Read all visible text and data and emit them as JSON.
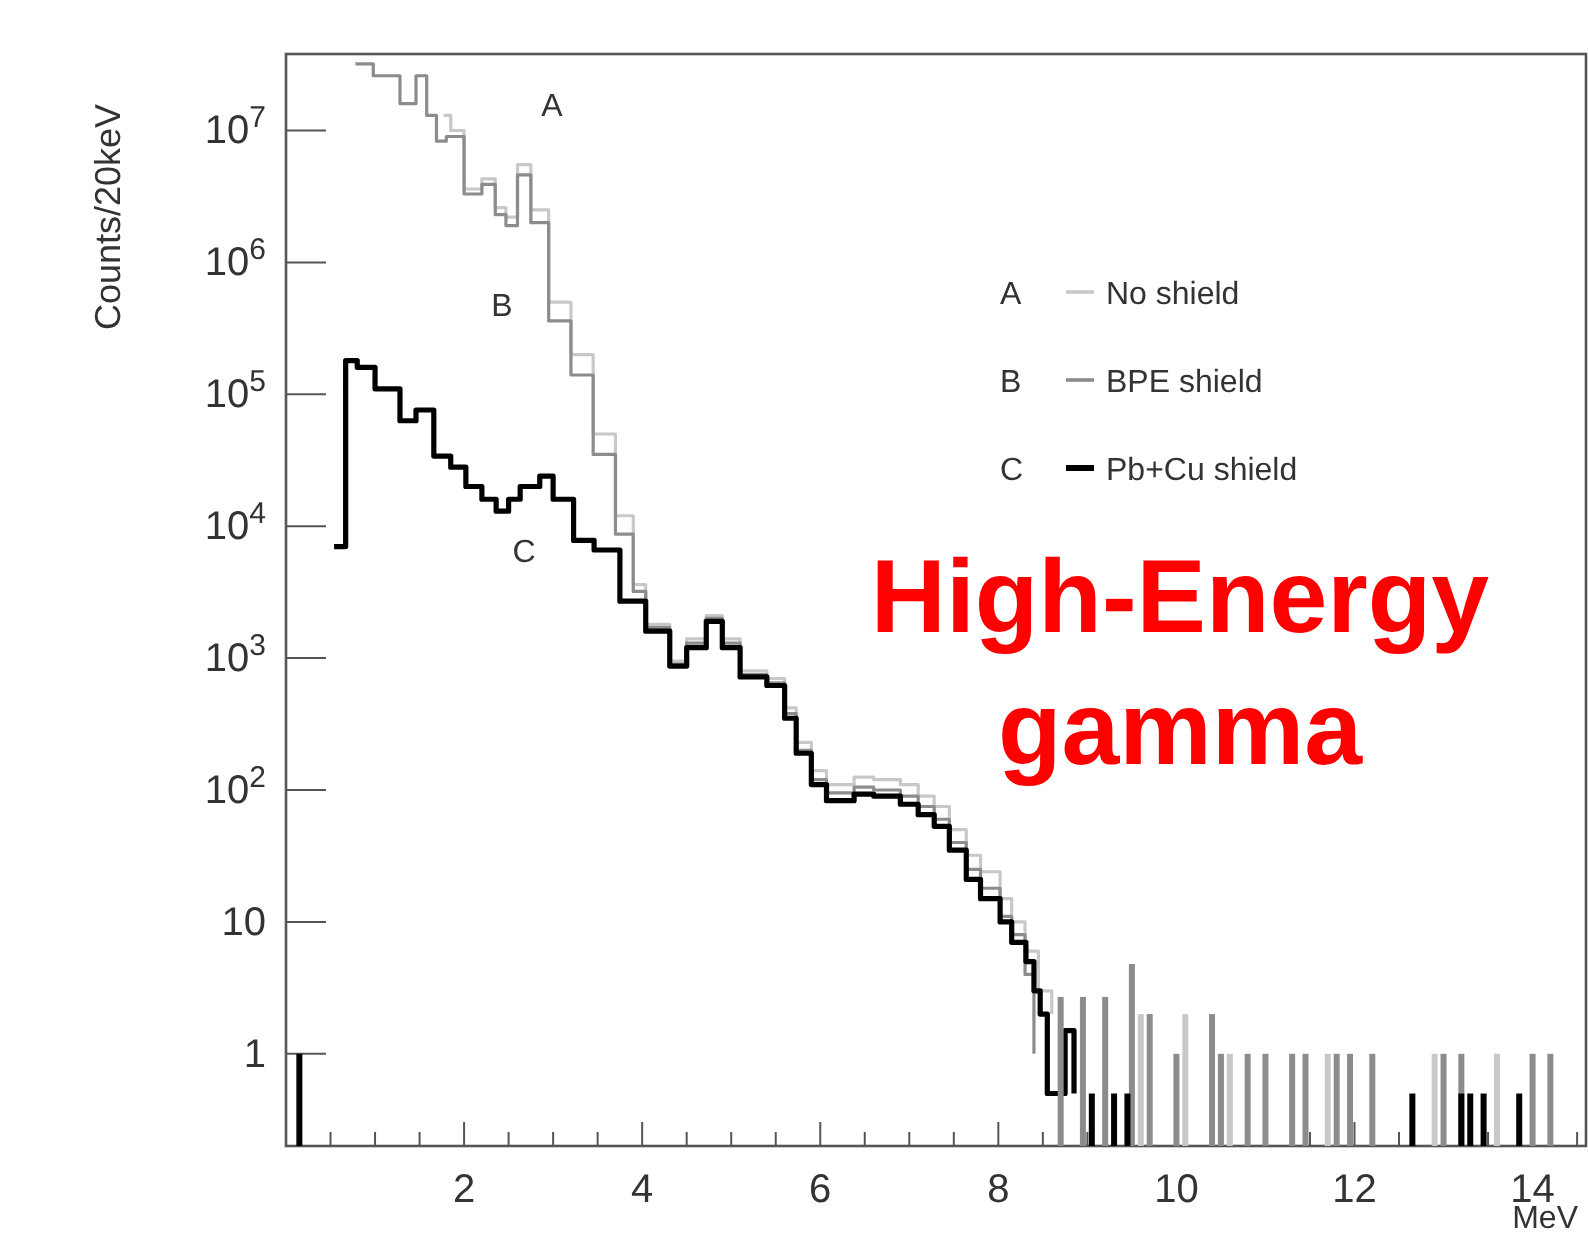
{
  "chart_data": {
    "type": "step",
    "xlabel": "MeV",
    "ylabel": "Counts/20keV",
    "log": "y",
    "grid": false,
    "legend": "top right",
    "line_style": "solid",
    "xlim": [
      0,
      14.6
    ],
    "ylim": [
      0.2,
      38000000
    ],
    "xticks": [
      {
        "value": 0.5,
        "label": null
      },
      {
        "value": 1,
        "label": null
      },
      {
        "value": 1.5,
        "label": null
      },
      2,
      {
        "value": 2.5,
        "label": null
      },
      {
        "value": 3,
        "label": null
      },
      {
        "value": 3.5,
        "label": null
      },
      4,
      {
        "value": 4.5,
        "label": null
      },
      {
        "value": 5,
        "label": null
      },
      {
        "value": 5.5,
        "label": null
      },
      6,
      {
        "value": 6.5,
        "label": null
      },
      {
        "value": 7,
        "label": null
      },
      {
        "value": 7.5,
        "label": null
      },
      8,
      {
        "value": 8.5,
        "label": null
      },
      {
        "value": 9,
        "label": null
      },
      {
        "value": 9.5,
        "label": null
      },
      10,
      {
        "value": 10.5,
        "label": null
      },
      {
        "value": 11,
        "label": null
      },
      {
        "value": 11.5,
        "label": null
      },
      12,
      {
        "value": 12.5,
        "label": null
      },
      {
        "value": 13,
        "label": null
      },
      {
        "value": 13.5,
        "label": null
      },
      14,
      {
        "value": 14.5,
        "label": null
      }
    ],
    "yticks": [
      1,
      10,
      {
        "value": 100,
        "label": "10$^{2}$"
      },
      {
        "value": 1000,
        "label": "10$^{3}$"
      },
      {
        "value": 10000,
        "label": "10$^{4}$"
      },
      {
        "value": 100000,
        "label": "10$^{5}$"
      },
      {
        "value": 1000000,
        "label": "10$^{6}$"
      },
      {
        "value": 10000000,
        "label": "10$^{7}$"
      }
    ],
    "series": [
      {
        "name": "No shield",
        "color": "#c8c8c8",
        "x": [
          1.77,
          1.85,
          2.0,
          2.2,
          2.35,
          2.47,
          2.6,
          2.75,
          2.95,
          3.2,
          3.45,
          3.7,
          3.9,
          4.04,
          4.31,
          4.5,
          4.72,
          4.9,
          5.1,
          5.4,
          5.6,
          5.73,
          5.9,
          6.07,
          6.38,
          6.6,
          6.9,
          7.1,
          7.28,
          7.45,
          7.64,
          7.8,
          8.02,
          8.15,
          8.3,
          8.45,
          8.6
        ],
        "values": [
          13000000,
          10000000,
          3600000,
          4300000,
          2600000,
          2200000,
          5500000,
          2500000,
          500000,
          200000,
          50000,
          12000,
          3600,
          1800,
          950,
          1400,
          2100,
          1400,
          800,
          700,
          420,
          230,
          140,
          110,
          125,
          120,
          110,
          90,
          75,
          50,
          32,
          24,
          15,
          10,
          6,
          3,
          2
        ]
      },
      {
        "name": "BPE shield",
        "color": "#8c8c8c",
        "x": [
          0.78,
          0.98,
          1.28,
          1.46,
          1.58,
          1.69,
          1.8,
          2.0,
          2.2,
          2.35,
          2.47,
          2.6,
          2.75,
          2.95,
          3.2,
          3.45,
          3.7,
          3.9,
          4.04,
          4.31,
          4.5,
          4.72,
          4.9,
          5.1,
          5.4,
          5.6,
          5.73,
          5.9,
          6.07,
          6.38,
          6.6,
          6.9,
          7.1,
          7.28,
          7.45,
          7.64,
          7.8,
          8.02,
          8.15,
          8.3,
          8.4
        ],
        "values": [
          32000000,
          26000000,
          16000000,
          26000000,
          13000000,
          8300000,
          9000000,
          3300000,
          3900000,
          2300000,
          1900000,
          4600000,
          2000000,
          360000,
          140000,
          35000,
          8700,
          3200,
          1700,
          900,
          1300,
          2000,
          1300,
          750,
          650,
          380,
          200,
          120,
          95,
          105,
          100,
          90,
          75,
          60,
          40,
          25,
          18,
          11,
          8,
          4,
          1
        ]
      },
      {
        "name": "Pb+Cu shield",
        "color": "#000000",
        "x": [
          0.54,
          0.67,
          0.8,
          1.0,
          1.28,
          1.46,
          1.66,
          1.85,
          2.02,
          2.2,
          2.36,
          2.5,
          2.63,
          2.85,
          3.0,
          3.23,
          3.46,
          3.75,
          4.04,
          4.31,
          4.5,
          4.72,
          4.9,
          5.1,
          5.4,
          5.6,
          5.73,
          5.9,
          6.07,
          6.38,
          6.6,
          6.9,
          7.1,
          7.28,
          7.45,
          7.64,
          7.8,
          8.02,
          8.15,
          8.31,
          8.4,
          8.47,
          8.55,
          8.75,
          8.85
        ],
        "values": [
          7000,
          180000,
          160000,
          110000,
          63000,
          76000,
          34000,
          28000,
          20000,
          16000,
          13000,
          16000,
          20000,
          24000,
          16000,
          7800,
          6600,
          2700,
          1600,
          870,
          1200,
          1900,
          1200,
          720,
          620,
          350,
          190,
          110,
          83,
          93,
          90,
          78,
          65,
          53,
          35,
          21,
          15,
          10,
          7,
          5,
          3,
          2,
          0.5,
          1.5,
          0.5
        ]
      },
      {
        "type": "bar",
        "color": "#c8c8c8",
        "x": [
          9.6,
          10.1,
          10.6,
          11.7,
          12.9,
          13.6
        ],
        "values": [
          2,
          2,
          1,
          1,
          1,
          1
        ]
      },
      {
        "type": "bar",
        "color": "#8c8c8c",
        "x": [
          8.7,
          8.95,
          9.2,
          9.5,
          9.7,
          10.0,
          10.4,
          10.5,
          10.8,
          11.0,
          11.3,
          11.45,
          11.8,
          11.95,
          12.2,
          13.0,
          13.2,
          14.0,
          14.2
        ],
        "values": [
          2.7,
          2.7,
          2.7,
          4.8,
          2,
          1,
          2,
          1,
          1,
          1,
          1,
          1,
          1,
          1,
          1,
          1,
          1,
          1,
          1
        ]
      },
      {
        "type": "bar",
        "color": "#000000",
        "x": [
          0.15,
          9.05,
          9.3,
          9.45,
          12.65,
          13.2,
          13.3,
          13.45,
          13.85
        ],
        "values": [
          1,
          0.5,
          0.5,
          0.5,
          0.5,
          0.5,
          0.5,
          0.5,
          0.5
        ]
      }
    ],
    "annotations": [
      "A",
      "B",
      "C",
      "High-Energy gamma"
    ]
  }
}
